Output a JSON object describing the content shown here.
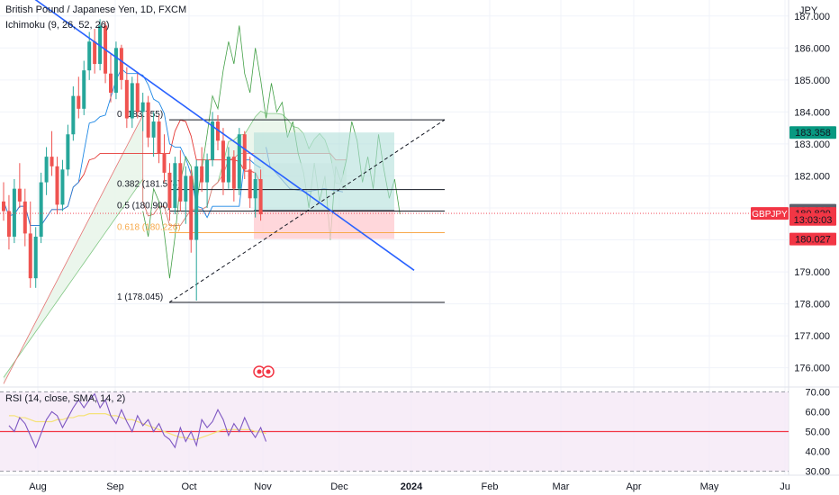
{
  "header": {
    "title": "British Pound / Japanese Yen, 1D, FXCM",
    "indicator": "Ichimoku (9, 26, 52, 26)",
    "currency": "JPY"
  },
  "colors": {
    "up_candle": "#26a69a",
    "down_candle": "#ef5350",
    "trendline": "#2962ff",
    "fib_382": "#131722",
    "fib_618": "#f7a94b",
    "rsi_line": "#7e57c2",
    "rsi_band": "#f3e5f5",
    "rsi_ma": "#f5e27a",
    "last_price": "#f23645",
    "target_box": "#b2dfdb",
    "stop_box": "#ffcdd2"
  },
  "chart_data": {
    "type": "candlestick",
    "symbol": "GBPJPY",
    "price_axis": {
      "ticks": [
        "187.000",
        "186.000",
        "185.000",
        "184.000",
        "183.000",
        "182.000",
        "181.000",
        "180.000",
        "179.000",
        "178.000",
        "177.000",
        "176.000"
      ],
      "ylim": [
        175.4,
        187.5
      ]
    },
    "time_axis": {
      "ticks": [
        "Aug",
        "Sep",
        "Oct",
        "Nov",
        "Dec",
        "2024",
        "Feb",
        "Mar",
        "Apr",
        "May",
        "Ju"
      ]
    },
    "price_labels": [
      {
        "text": "183.358",
        "value": 183.358,
        "color": "#089981"
      },
      {
        "text": "180.927",
        "value": 180.927,
        "color": "#5d606b"
      },
      {
        "text": "180.829",
        "value": 180.829,
        "color": "#f23645"
      },
      {
        "text": "13:03:03",
        "value": 180.64,
        "color": "#f23645"
      },
      {
        "text": "180.027",
        "value": 180.027,
        "color": "#f23645"
      }
    ],
    "symbol_label": "GBPJPY",
    "fibonacci": [
      {
        "label": "0 (183.755)",
        "level": 0,
        "value": 183.755
      },
      {
        "label": "0.382 (181.574)",
        "level": 0.382,
        "value": 181.574
      },
      {
        "label": "0.5 (180.900)",
        "level": 0.5,
        "value": 180.9
      },
      {
        "label": "0.618 (180.226)",
        "level": 0.618,
        "value": 180.226
      },
      {
        "label": "1 (178.045)",
        "level": 1,
        "value": 178.045
      }
    ],
    "position": {
      "entry": 180.927,
      "target": 183.358,
      "stop": 180.027
    },
    "candles": [
      {
        "o": 181.2,
        "h": 181.8,
        "l": 180.6,
        "c": 180.9
      },
      {
        "o": 180.9,
        "h": 181.4,
        "l": 179.7,
        "c": 180.1
      },
      {
        "o": 180.1,
        "h": 181.9,
        "l": 179.9,
        "c": 181.6
      },
      {
        "o": 181.6,
        "h": 182.4,
        "l": 181.0,
        "c": 181.2
      },
      {
        "o": 181.2,
        "h": 181.6,
        "l": 179.8,
        "c": 180.2
      },
      {
        "o": 180.2,
        "h": 181.2,
        "l": 178.5,
        "c": 178.8
      },
      {
        "o": 178.8,
        "h": 180.4,
        "l": 178.5,
        "c": 180.1
      },
      {
        "o": 180.1,
        "h": 182.1,
        "l": 179.9,
        "c": 181.8
      },
      {
        "o": 181.8,
        "h": 182.9,
        "l": 181.4,
        "c": 182.6
      },
      {
        "o": 182.6,
        "h": 183.4,
        "l": 182.0,
        "c": 182.3
      },
      {
        "o": 182.3,
        "h": 182.6,
        "l": 180.8,
        "c": 181.1
      },
      {
        "o": 181.1,
        "h": 182.5,
        "l": 180.9,
        "c": 182.2
      },
      {
        "o": 182.2,
        "h": 183.6,
        "l": 182.0,
        "c": 183.3
      },
      {
        "o": 183.3,
        "h": 184.8,
        "l": 183.1,
        "c": 184.5
      },
      {
        "o": 184.5,
        "h": 185.1,
        "l": 183.8,
        "c": 184.1
      },
      {
        "o": 184.1,
        "h": 185.6,
        "l": 183.9,
        "c": 185.3
      },
      {
        "o": 185.3,
        "h": 186.5,
        "l": 185.0,
        "c": 186.2
      },
      {
        "o": 186.2,
        "h": 186.6,
        "l": 185.2,
        "c": 185.5
      },
      {
        "o": 185.5,
        "h": 186.9,
        "l": 185.3,
        "c": 186.7
      },
      {
        "o": 186.7,
        "h": 186.8,
        "l": 184.9,
        "c": 185.2
      },
      {
        "o": 185.2,
        "h": 185.8,
        "l": 184.3,
        "c": 184.6
      },
      {
        "o": 184.6,
        "h": 186.2,
        "l": 184.4,
        "c": 186.0
      },
      {
        "o": 186.0,
        "h": 186.1,
        "l": 184.7,
        "c": 185.0
      },
      {
        "o": 185.0,
        "h": 185.4,
        "l": 183.5,
        "c": 183.8
      },
      {
        "o": 183.8,
        "h": 185.1,
        "l": 183.5,
        "c": 184.9
      },
      {
        "o": 184.9,
        "h": 185.2,
        "l": 183.8,
        "c": 184.0
      },
      {
        "o": 184.0,
        "h": 184.6,
        "l": 183.4,
        "c": 184.3
      },
      {
        "o": 184.3,
        "h": 184.5,
        "l": 182.9,
        "c": 183.2
      },
      {
        "o": 183.2,
        "h": 184.0,
        "l": 182.6,
        "c": 183.7
      },
      {
        "o": 183.7,
        "h": 183.9,
        "l": 182.4,
        "c": 182.7
      },
      {
        "o": 182.7,
        "h": 183.3,
        "l": 181.8,
        "c": 182.1
      },
      {
        "o": 182.1,
        "h": 182.4,
        "l": 180.6,
        "c": 181.0
      },
      {
        "o": 181.0,
        "h": 182.6,
        "l": 180.8,
        "c": 182.4
      },
      {
        "o": 182.4,
        "h": 182.8,
        "l": 180.9,
        "c": 181.2
      },
      {
        "o": 181.2,
        "h": 182.3,
        "l": 180.5,
        "c": 182.0
      },
      {
        "o": 182.0,
        "h": 182.2,
        "l": 179.6,
        "c": 180.0
      },
      {
        "o": 180.0,
        "h": 182.5,
        "l": 178.1,
        "c": 182.3
      },
      {
        "o": 182.3,
        "h": 182.9,
        "l": 181.5,
        "c": 181.8
      },
      {
        "o": 181.8,
        "h": 182.7,
        "l": 181.0,
        "c": 182.5
      },
      {
        "o": 182.5,
        "h": 184.0,
        "l": 182.3,
        "c": 183.7
      },
      {
        "o": 183.7,
        "h": 183.9,
        "l": 182.8,
        "c": 183.1
      },
      {
        "o": 183.1,
        "h": 183.5,
        "l": 181.4,
        "c": 181.8
      },
      {
        "o": 181.8,
        "h": 182.9,
        "l": 181.6,
        "c": 182.6
      },
      {
        "o": 182.6,
        "h": 182.8,
        "l": 181.2,
        "c": 181.6
      },
      {
        "o": 181.6,
        "h": 183.5,
        "l": 181.4,
        "c": 183.3
      },
      {
        "o": 183.3,
        "h": 183.4,
        "l": 181.9,
        "c": 182.2
      },
      {
        "o": 182.2,
        "h": 182.6,
        "l": 181.0,
        "c": 181.3
      },
      {
        "o": 181.3,
        "h": 182.1,
        "l": 180.7,
        "c": 181.9
      },
      {
        "o": 181.9,
        "h": 182.2,
        "l": 180.6,
        "c": 180.8
      }
    ],
    "rsi": {
      "label": "RSI (14, close, SMA, 14, 2)",
      "ticks": [
        "70.00",
        "60.00",
        "50.00",
        "40.00",
        "30.00"
      ],
      "ylim": [
        28,
        72
      ],
      "values": [
        53,
        50,
        57,
        54,
        48,
        42,
        49,
        56,
        60,
        58,
        52,
        57,
        62,
        66,
        62,
        66,
        69,
        62,
        66,
        58,
        54,
        61,
        55,
        50,
        58,
        53,
        56,
        50,
        54,
        48,
        46,
        42,
        52,
        45,
        50,
        43,
        56,
        52,
        55,
        61,
        56,
        48,
        54,
        50,
        57,
        51,
        47,
        52,
        45
      ],
      "sma": [
        58,
        58,
        57,
        57,
        56,
        55,
        55,
        55,
        55,
        56,
        56,
        57,
        57,
        58,
        58,
        59,
        59,
        59,
        59,
        58,
        58,
        57,
        56,
        56,
        55,
        54,
        53,
        52,
        51,
        50,
        49,
        48,
        47,
        47,
        46,
        46,
        47,
        48,
        49,
        50,
        51,
        51,
        51,
        51,
        51,
        51,
        50,
        50,
        49
      ]
    }
  }
}
